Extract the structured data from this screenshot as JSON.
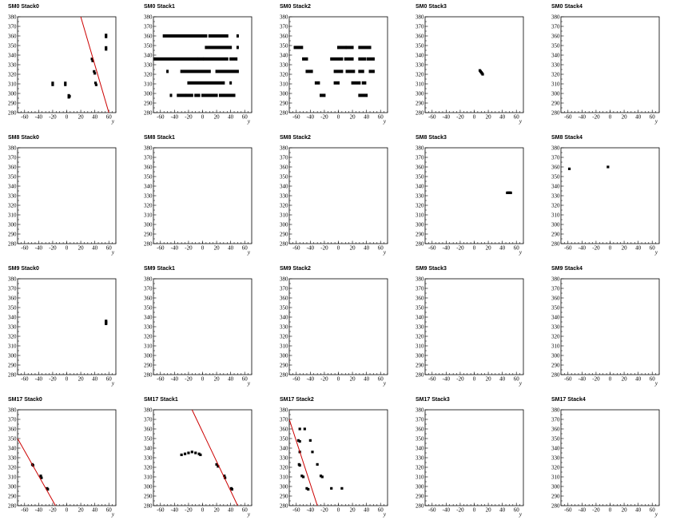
{
  "chart_data": {
    "type": "scatter",
    "axis": {
      "xlabel": "y",
      "xlim": [
        -70,
        70
      ],
      "ylim": [
        280,
        380
      ],
      "xticks": [
        "-60",
        "-40",
        "-20",
        "0",
        "20",
        "40",
        "60"
      ],
      "yticks": [
        "280",
        "290",
        "300",
        "310",
        "320",
        "330",
        "340",
        "350",
        "360",
        "370",
        "380"
      ],
      "grid": false
    },
    "colors": {
      "points": "#000000",
      "track": "#cc0000",
      "frame": "#000000"
    },
    "panels": [
      {
        "title": "SM0 Stack0",
        "points": [
          [
            -20,
            311
          ],
          [
            -20,
            309
          ],
          [
            -2,
            311
          ],
          [
            -2,
            309
          ],
          [
            3,
            298
          ],
          [
            3,
            296
          ],
          [
            4,
            297
          ],
          [
            36,
            336
          ],
          [
            37,
            334
          ],
          [
            39,
            323
          ],
          [
            40,
            321
          ],
          [
            41,
            311
          ],
          [
            42,
            309
          ],
          [
            56,
            361
          ],
          [
            56,
            359
          ],
          [
            56,
            348
          ],
          [
            56,
            346
          ]
        ],
        "track": [
          [
            20,
            380
          ],
          [
            60,
            280
          ]
        ]
      },
      {
        "title": "SM0 Stack1",
        "points": [],
        "clusters": [
          [
            -55,
            5,
            360
          ],
          [
            10,
            35,
            360
          ],
          [
            50,
            50,
            360
          ],
          [
            5,
            40,
            348
          ],
          [
            50,
            50,
            348
          ],
          [
            -68,
            -8,
            336
          ],
          [
            -5,
            0,
            336
          ],
          [
            3,
            35,
            336
          ],
          [
            40,
            48,
            336
          ],
          [
            -50,
            -50,
            323
          ],
          [
            -30,
            10,
            323
          ],
          [
            20,
            50,
            323
          ],
          [
            -20,
            30,
            311
          ],
          [
            40,
            40,
            311
          ],
          [
            -45,
            -45,
            298
          ],
          [
            -35,
            -25,
            298
          ],
          [
            -22,
            -15,
            298
          ],
          [
            -10,
            -5,
            298
          ],
          [
            0,
            20,
            298
          ],
          [
            25,
            45,
            298
          ]
        ],
        "track": null
      },
      {
        "title": "SM0 Stack2",
        "points": [],
        "clusters": [
          [
            -62,
            -52,
            348
          ],
          [
            0,
            10,
            348
          ],
          [
            12,
            20,
            348
          ],
          [
            30,
            45,
            348
          ],
          [
            -50,
            -45,
            336
          ],
          [
            -10,
            5,
            336
          ],
          [
            10,
            20,
            336
          ],
          [
            30,
            38,
            336
          ],
          [
            42,
            50,
            336
          ],
          [
            -45,
            -38,
            323
          ],
          [
            -5,
            5,
            323
          ],
          [
            12,
            22,
            323
          ],
          [
            30,
            35,
            323
          ],
          [
            45,
            50,
            323
          ],
          [
            -32,
            -28,
            311
          ],
          [
            -5,
            0,
            311
          ],
          [
            20,
            30,
            311
          ],
          [
            35,
            38,
            311
          ],
          [
            -25,
            -20,
            298
          ],
          [
            30,
            40,
            298
          ]
        ],
        "track": null
      },
      {
        "title": "SM0 Stack3",
        "points": [
          [
            8,
            324
          ],
          [
            9,
            323
          ],
          [
            10,
            322
          ],
          [
            11,
            321
          ],
          [
            12,
            320
          ]
        ],
        "track": null
      },
      {
        "title": "SM0 Stack4",
        "points": [],
        "track": null
      },
      {
        "title": "SM8 Stack0",
        "points": [],
        "track": null
      },
      {
        "title": "SM8 Stack1",
        "points": [],
        "track": null
      },
      {
        "title": "SM8 Stack2",
        "points": [],
        "track": null
      },
      {
        "title": "SM8 Stack3",
        "points": [
          [
            47,
            333
          ],
          [
            48,
            333
          ],
          [
            49,
            333
          ],
          [
            50,
            333
          ],
          [
            51,
            333
          ],
          [
            52,
            333
          ]
        ],
        "track": null
      },
      {
        "title": "SM8 Stack4",
        "points": [
          [
            -58,
            358
          ],
          [
            -3,
            360
          ]
        ],
        "track": null
      },
      {
        "title": "SM9 Stack0",
        "points": [
          [
            56,
            336
          ],
          [
            56,
            335
          ],
          [
            56,
            334
          ],
          [
            56,
            333
          ]
        ],
        "track": null
      },
      {
        "title": "SM9 Stack1",
        "points": [],
        "track": null
      },
      {
        "title": "SM9 Stack2",
        "points": [],
        "track": null
      },
      {
        "title": "SM9 Stack3",
        "points": [],
        "track": null
      },
      {
        "title": "SM9 Stack4",
        "points": [],
        "track": null
      },
      {
        "title": "SM17 Stack0",
        "points": [
          [
            -49,
            323
          ],
          [
            -48,
            322
          ],
          [
            -37,
            311
          ],
          [
            -36,
            309
          ],
          [
            -28,
            298
          ],
          [
            -27,
            297
          ]
        ],
        "track": [
          [
            -70,
            350
          ],
          [
            -16,
            280
          ]
        ]
      },
      {
        "title": "SM17 Stack1",
        "points": [
          [
            -30,
            333
          ],
          [
            -25,
            334
          ],
          [
            -20,
            335
          ],
          [
            -15,
            336
          ],
          [
            -10,
            335
          ],
          [
            -5,
            334
          ],
          [
            -3,
            333
          ],
          [
            20,
            323
          ],
          [
            22,
            321
          ],
          [
            31,
            311
          ],
          [
            32,
            309
          ],
          [
            41,
            298
          ],
          [
            42,
            297
          ]
        ],
        "track": [
          [
            -15,
            380
          ],
          [
            50,
            280
          ]
        ]
      },
      {
        "title": "SM17 Stack2",
        "points": [
          [
            -55,
            360
          ],
          [
            -48,
            360
          ],
          [
            -57,
            348
          ],
          [
            -55,
            347
          ],
          [
            -40,
            348
          ],
          [
            -55,
            336
          ],
          [
            -37,
            336
          ],
          [
            -56,
            323
          ],
          [
            -55,
            322
          ],
          [
            -30,
            323
          ],
          [
            -52,
            311
          ],
          [
            -50,
            310
          ],
          [
            -25,
            311
          ],
          [
            -23,
            310
          ],
          [
            -45,
            298
          ],
          [
            -43,
            297
          ],
          [
            -10,
            298
          ],
          [
            5,
            298
          ]
        ],
        "track": [
          [
            -70,
            370
          ],
          [
            -30,
            280
          ]
        ]
      },
      {
        "title": "SM17 Stack3",
        "points": [],
        "track": null
      },
      {
        "title": "SM17 Stack4",
        "points": [],
        "track": null
      }
    ]
  }
}
